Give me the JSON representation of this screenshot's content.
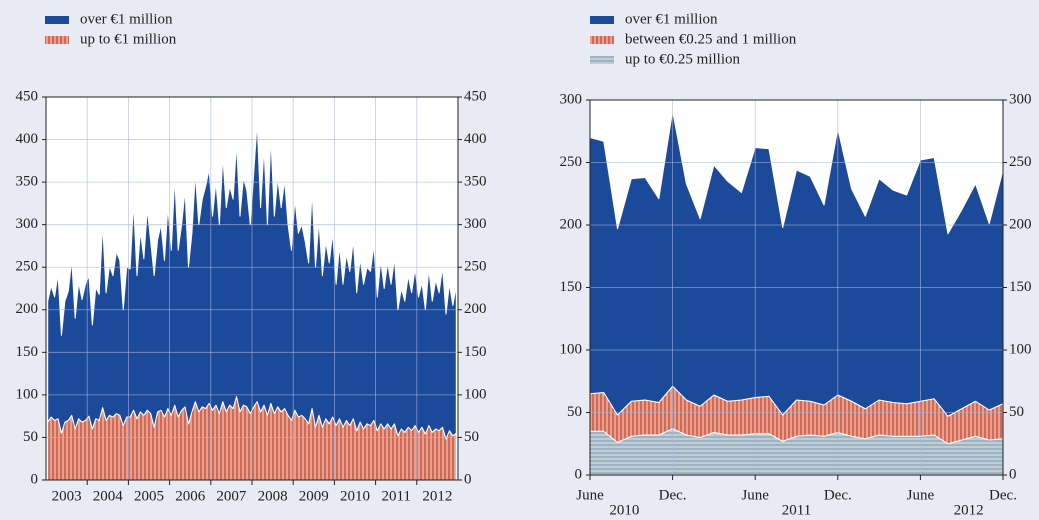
{
  "chart_data": [
    {
      "type": "area",
      "stacked": true,
      "categories": [
        null,
        null,
        null,
        null,
        null,
        null,
        "2003",
        null,
        null,
        null,
        null,
        null,
        null,
        null,
        null,
        null,
        null,
        null,
        "2004",
        null,
        null,
        null,
        null,
        null,
        null,
        null,
        null,
        null,
        null,
        null,
        "2005",
        null,
        null,
        null,
        null,
        null,
        null,
        null,
        null,
        null,
        null,
        null,
        "2006",
        null,
        null,
        null,
        null,
        null,
        null,
        null,
        null,
        null,
        null,
        null,
        "2007",
        null,
        null,
        null,
        null,
        null,
        null,
        null,
        null,
        null,
        null,
        null,
        "2008",
        null,
        null,
        null,
        null,
        null,
        null,
        null,
        null,
        null,
        null,
        null,
        "2009",
        null,
        null,
        null,
        null,
        null,
        null,
        null,
        null,
        null,
        null,
        null,
        "2010",
        null,
        null,
        null,
        null,
        null,
        null,
        null,
        null,
        null,
        null,
        null,
        "2011",
        null,
        null,
        null,
        null,
        null,
        null,
        null,
        null,
        null,
        null,
        null,
        "2012",
        null,
        null,
        null,
        null,
        null
      ],
      "series": [
        {
          "name": "over €1 million",
          "color": "#1c4a9a",
          "pattern": "solid",
          "values": [
            142,
            154,
            145,
            170,
            115,
            142,
            152,
            182,
            130,
            160,
            144,
            160,
            165,
            122,
            154,
            148,
            215,
            150,
            176,
            166,
            190,
            182,
            136,
            176,
            174,
            243,
            168,
            212,
            184,
            236,
            202,
            178,
            202,
            218,
            184,
            236,
            194,
            267,
            196,
            218,
            254,
            184,
            210,
            268,
            220,
            244,
            261,
            275,
            228,
            262,
            222,
            288,
            240,
            257,
            246,
            297,
            230,
            267,
            254,
            222,
            274,
            328,
            240,
            302,
            224,
            312,
            232,
            269,
            240,
            268,
            224,
            200,
            248,
            216,
            224,
            208,
            189,
            256,
            188,
            229,
            178,
            208,
            189,
            216,
            166,
            203,
            168,
            195,
            181,
            210,
            162,
            192,
            170,
            184,
            181,
            205,
            157,
            192,
            165,
            189,
            170,
            194,
            148,
            165,
            154,
            178,
            162,
            184,
            159,
            170,
            146,
            184,
            154,
            175,
            162,
            188,
            147,
            172,
            153,
            173
          ]
        },
        {
          "name": "up to €1 million",
          "color": "#e8a08a",
          "pattern": "vertical",
          "values": [
            68,
            74,
            70,
            72,
            55,
            68,
            70,
            76,
            60,
            72,
            68,
            70,
            75,
            60,
            72,
            70,
            85,
            70,
            76,
            74,
            78,
            76,
            64,
            74,
            74,
            82,
            72,
            80,
            76,
            82,
            78,
            62,
            80,
            82,
            74,
            84,
            76,
            88,
            74,
            82,
            86,
            66,
            80,
            92,
            80,
            86,
            84,
            90,
            82,
            88,
            78,
            92,
            80,
            88,
            84,
            98,
            80,
            88,
            86,
            78,
            86,
            92,
            80,
            88,
            76,
            90,
            78,
            86,
            80,
            84,
            76,
            70,
            82,
            74,
            76,
            72,
            66,
            84,
            62,
            76,
            62,
            72,
            66,
            74,
            64,
            72,
            62,
            70,
            64,
            72,
            58,
            68,
            60,
            66,
            64,
            70,
            58,
            66,
            60,
            66,
            60,
            66,
            52,
            60,
            56,
            62,
            58,
            64,
            56,
            62,
            54,
            64,
            56,
            60,
            58,
            62,
            48,
            58,
            52,
            55
          ]
        }
      ],
      "ylim": [
        0,
        450
      ],
      "yticks": [
        0,
        50,
        100,
        150,
        200,
        250,
        300,
        350,
        400,
        450
      ],
      "grid": true
    },
    {
      "type": "area",
      "stacked": true,
      "categories": [
        "June",
        null,
        null,
        null,
        null,
        null,
        "Dec.",
        null,
        null,
        null,
        null,
        null,
        "June",
        null,
        null,
        null,
        null,
        null,
        "Dec.",
        null,
        null,
        null,
        null,
        null,
        "June",
        null,
        null,
        null,
        null,
        null,
        "Dec."
      ],
      "year_labels": [
        "2010",
        "2011",
        "2012"
      ],
      "series": [
        {
          "name": "over €1 million",
          "color": "#1c4a9a",
          "pattern": "solid",
          "values": [
            205,
            201,
            149,
            178,
            178,
            163,
            220,
            173,
            150,
            184,
            176,
            166,
            200,
            198,
            150,
            184,
            180,
            160,
            213,
            170,
            154,
            177,
            170,
            167,
            193,
            193,
            146,
            159,
            174,
            149,
            187
          ]
        },
        {
          "name": "between €0.25 and 1 million",
          "color": "#e8a08a",
          "pattern": "vertical",
          "values": [
            30,
            31,
            22,
            28,
            28,
            26,
            34,
            28,
            25,
            30,
            27,
            28,
            29,
            30,
            21,
            29,
            27,
            25,
            30,
            28,
            24,
            28,
            27,
            26,
            28,
            29,
            22,
            25,
            28,
            24,
            28
          ]
        },
        {
          "name": "up to €0.25 million",
          "color": "#bccdd8",
          "pattern": "horizontal",
          "values": [
            35,
            35,
            26,
            31,
            32,
            32,
            37,
            32,
            30,
            34,
            32,
            32,
            33,
            33,
            27,
            31,
            32,
            31,
            34,
            31,
            29,
            32,
            31,
            31,
            31,
            32,
            25,
            28,
            31,
            28,
            29
          ]
        }
      ],
      "ylim": [
        0,
        300
      ],
      "yticks": [
        0,
        50,
        100,
        150,
        200,
        250,
        300
      ],
      "grid": true
    }
  ]
}
